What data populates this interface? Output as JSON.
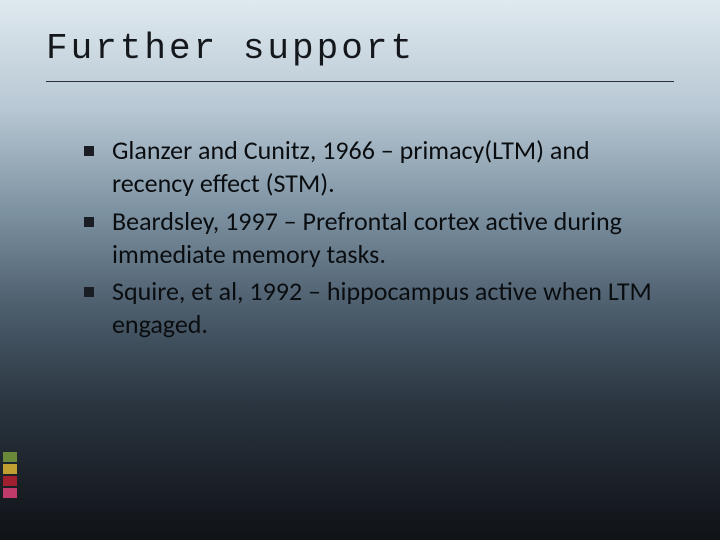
{
  "slide": {
    "title": "Further support",
    "bullets": [
      "Glanzer and Cunitz, 1966 – primacy(LTM) and recency effect (STM).",
      "Beardsley, 1997 – Prefrontal cortex active during immediate memory tasks.",
      "Squire, et al, 1992 – hippocampus active when LTM engaged."
    ],
    "background_gradient": {
      "top": "#dfe9ef",
      "bottom": "#0f1217"
    },
    "title_font": "Consolas",
    "title_fontsize": 36,
    "body_fontsize": 26,
    "accent_bars": [
      {
        "color": "#6a8a3a"
      },
      {
        "color": "#c0a030"
      },
      {
        "color": "#a02030"
      },
      {
        "color": "#c03a6a"
      }
    ],
    "rule_color": "#2a3038",
    "bullet_marker_color": "#1a1e24",
    "text_color": "#0a0d10"
  }
}
